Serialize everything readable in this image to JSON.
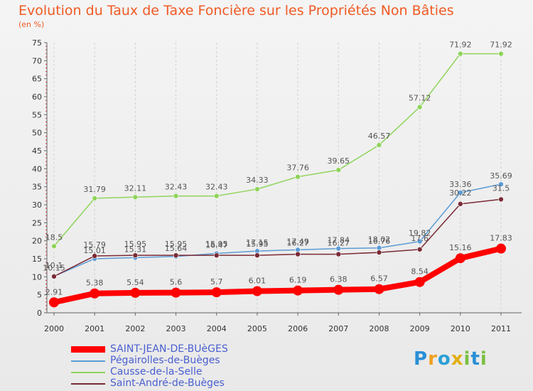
{
  "chart_data": {
    "type": "line",
    "title": "Evolution du Taux de Taxe Foncière sur les Propriétés Non Bâties",
    "ylabel": "(en %)",
    "xlabel": "",
    "ylim": [
      0,
      75
    ],
    "yticks": [
      0,
      5,
      10,
      15,
      20,
      25,
      30,
      35,
      40,
      45,
      50,
      55,
      60,
      65,
      70,
      75
    ],
    "categories": [
      "2000",
      "2001",
      "2002",
      "2003",
      "2004",
      "2005",
      "2006",
      "2007",
      "2008",
      "2009",
      "2010",
      "2011"
    ],
    "grid": "vertical dashed",
    "series": [
      {
        "name": "SAINT-JEAN-DE-BUèGES",
        "color": "#ff0000",
        "emphasis": true,
        "values": [
          2.91,
          5.38,
          5.54,
          5.6,
          5.7,
          6.01,
          6.19,
          6.38,
          6.57,
          8.54,
          15.16,
          17.83
        ],
        "labels": [
          "2.91",
          "5.38",
          "5.54",
          "5.6",
          "5.7",
          "6.01",
          "6.19",
          "6.38",
          "6.57",
          "8.54",
          "15.16",
          "17.83"
        ]
      },
      {
        "name": "Pégairolles-de-Buèges",
        "color": "#5b9bd5",
        "values": [
          10.15,
          15.01,
          15.31,
          15.64,
          16.47,
          17.15,
          17.49,
          17.84,
          18.02,
          19.82,
          33.36,
          35.69
        ],
        "labels": [
          "10.15",
          "15.01",
          "15.31",
          "15.64",
          "16.47",
          "17.15",
          "17.49",
          "17.84",
          "18.02",
          "19.82",
          "33.36",
          "35.69"
        ]
      },
      {
        "name": "Causse-de-la-Selle",
        "color": "#8fd45a",
        "values": [
          18.5,
          31.79,
          32.11,
          32.43,
          32.43,
          34.33,
          37.76,
          39.65,
          46.57,
          57.12,
          71.92,
          71.92
        ],
        "labels": [
          "18.5",
          "31.79",
          "32.11",
          "32.43",
          "32.43",
          "34.33",
          "37.76",
          "39.65",
          "46.57",
          "57.12",
          "71.92",
          "71.92"
        ]
      },
      {
        "name": "Saint-André-de-Buèges",
        "color": "#7a2a35",
        "values": [
          10.1,
          15.79,
          15.95,
          15.95,
          15.95,
          15.95,
          16.27,
          16.27,
          16.76,
          17.6,
          30.22,
          31.5
        ],
        "labels": [
          "10.1",
          "15.79",
          "15.95",
          "15.95",
          "15.95",
          "15.95",
          "16.27",
          "16.27",
          "16.76",
          "17.6",
          "30.22",
          "31.5"
        ]
      }
    ],
    "legend_position": "bottom-left"
  },
  "brand": {
    "text": "Proxiti"
  }
}
